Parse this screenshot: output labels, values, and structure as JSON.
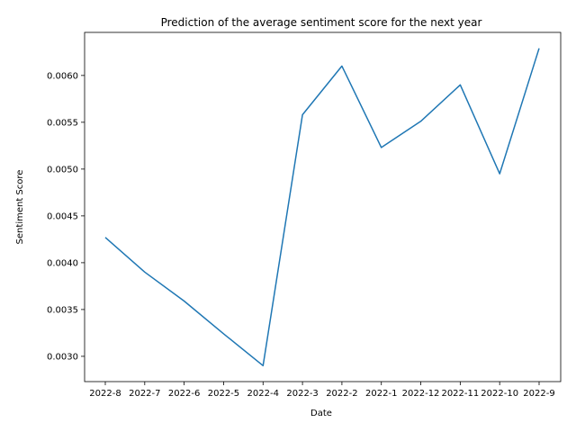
{
  "chart_data": {
    "type": "line",
    "title": "Prediction of the average sentiment score for the next year",
    "xlabel": "Date",
    "ylabel": "Sentiment Score",
    "categories": [
      "2022-8",
      "2022-7",
      "2022-6",
      "2022-5",
      "2022-4",
      "2022-3",
      "2022-2",
      "2022-1",
      "2022-12",
      "2022-11",
      "2022-10",
      "2022-9"
    ],
    "series": [
      {
        "values": [
          0.00427,
          0.0039,
          0.00359,
          0.00324,
          0.0029,
          0.00558,
          0.0061,
          0.00523,
          0.00551,
          0.0059,
          0.00495,
          0.00629
        ],
        "color": "#1f77b4"
      }
    ],
    "ylim": [
      0.00273,
      0.00646
    ],
    "yticks": [
      "0.0030",
      "0.0035",
      "0.0040",
      "0.0045",
      "0.0050",
      "0.0055",
      "0.0060"
    ],
    "ytick_values": [
      0.003,
      0.0035,
      0.004,
      0.0045,
      0.005,
      0.0055,
      0.006
    ],
    "grid": false,
    "legend": false
  }
}
